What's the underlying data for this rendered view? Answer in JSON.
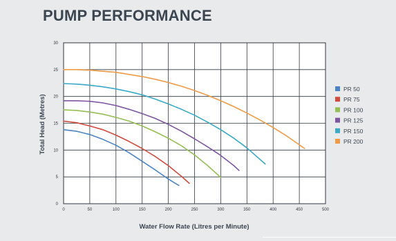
{
  "title": "PUMP PERFORMANCE",
  "chart_data": {
    "type": "line",
    "xlabel": "Water Flow Rate (Litres per Minute)",
    "ylabel": "Total Head (Metres)",
    "xlim": [
      0,
      500
    ],
    "ylim": [
      0,
      30
    ],
    "x_ticks": [
      "0",
      "50",
      "100",
      "150",
      "200",
      "250",
      "300",
      "350",
      "400",
      "450",
      "500"
    ],
    "y_ticks": [
      "0",
      "5",
      "10",
      "15",
      "20",
      "25",
      "30"
    ],
    "grid": true,
    "legend_position": "right",
    "series": [
      {
        "name": "PR 50",
        "color": "#4a84c4",
        "x": [
          0,
          25,
          50,
          75,
          100,
          125,
          150,
          175,
          200,
          220
        ],
        "y": [
          13.8,
          13.5,
          12.9,
          12.0,
          10.9,
          9.5,
          7.9,
          6.3,
          4.6,
          3.4
        ]
      },
      {
        "name": "PR 75",
        "color": "#d24a3c",
        "x": [
          0,
          25,
          50,
          75,
          100,
          125,
          150,
          175,
          200,
          225,
          240
        ],
        "y": [
          15.4,
          15.1,
          14.5,
          13.8,
          12.8,
          11.6,
          10.3,
          8.8,
          7.1,
          5.1,
          3.8
        ]
      },
      {
        "name": "PR 100",
        "color": "#94bf52",
        "x": [
          0,
          25,
          50,
          75,
          100,
          125,
          150,
          175,
          200,
          225,
          250,
          275,
          300
        ],
        "y": [
          17.5,
          17.4,
          17.1,
          16.7,
          16.1,
          15.4,
          14.5,
          13.4,
          12.2,
          10.8,
          9.1,
          7.1,
          4.9
        ]
      },
      {
        "name": "PR 125",
        "color": "#7b55a0",
        "x": [
          0,
          25,
          50,
          75,
          100,
          125,
          150,
          175,
          200,
          225,
          250,
          275,
          300,
          325,
          335
        ],
        "y": [
          19.2,
          19.2,
          19.1,
          18.8,
          18.3,
          17.6,
          16.8,
          15.9,
          14.8,
          13.5,
          12.1,
          10.6,
          9.0,
          7.1,
          6.2
        ]
      },
      {
        "name": "PR 150",
        "color": "#3aa9c6",
        "x": [
          0,
          25,
          50,
          75,
          100,
          125,
          150,
          175,
          200,
          225,
          250,
          275,
          300,
          325,
          350,
          385
        ],
        "y": [
          22.4,
          22.3,
          22.1,
          21.8,
          21.4,
          20.9,
          20.3,
          19.5,
          18.6,
          17.6,
          16.5,
          15.2,
          13.8,
          12.2,
          10.4,
          7.4
        ]
      },
      {
        "name": "PR 200",
        "color": "#ef9a44",
        "x": [
          0,
          25,
          50,
          75,
          100,
          125,
          150,
          175,
          200,
          225,
          250,
          275,
          300,
          325,
          350,
          375,
          400,
          425,
          450,
          460
        ],
        "y": [
          25.0,
          25.0,
          24.9,
          24.7,
          24.5,
          24.1,
          23.7,
          23.2,
          22.6,
          21.9,
          21.1,
          20.2,
          19.2,
          18.1,
          16.9,
          15.6,
          14.2,
          12.7,
          11.0,
          10.3
        ]
      }
    ]
  }
}
